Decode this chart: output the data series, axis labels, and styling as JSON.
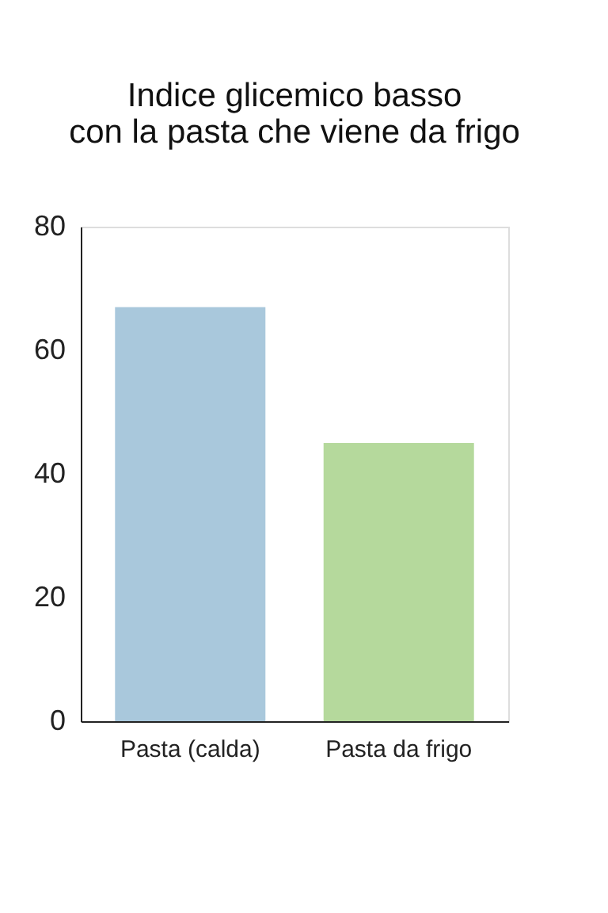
{
  "chart_data": {
    "type": "bar",
    "title": [
      "Indice glicemico basso",
      "con la pasta che viene da frigo"
    ],
    "categories": [
      "Pasta (calda)",
      "Pasta da frigo"
    ],
    "values": [
      67,
      45
    ],
    "colors": [
      "#a9c8dc",
      "#b5d99c"
    ],
    "ylim": [
      0,
      80
    ],
    "yticks": [
      0,
      20,
      40,
      60,
      80
    ],
    "grid": false
  }
}
